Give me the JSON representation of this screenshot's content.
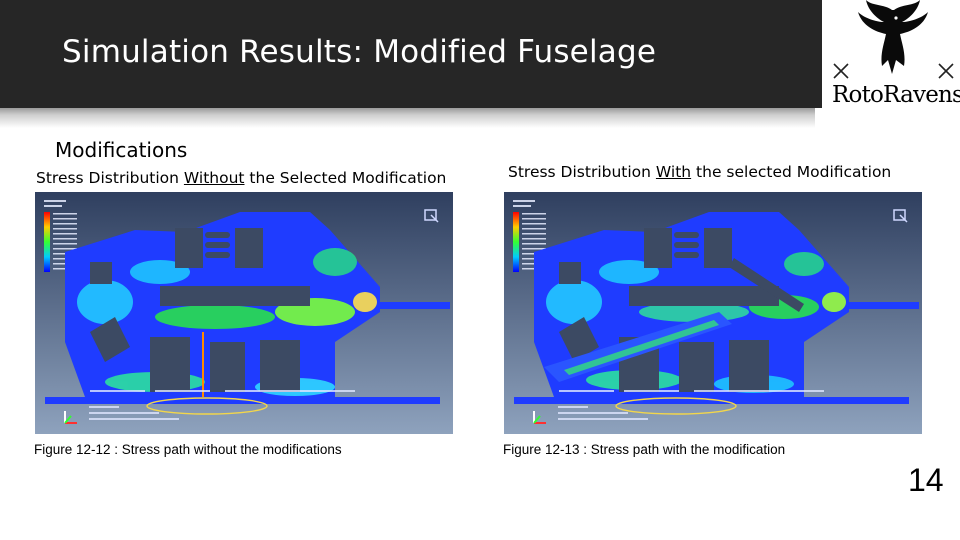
{
  "slide": {
    "title": "Simulation Results: Modified Fuselage",
    "logo_text": "RotoRavens",
    "page_number": "14"
  },
  "content": {
    "heading": "Modifications",
    "left": {
      "subheading_before": "Stress Distribution ",
      "subheading_emphasis": "Without",
      "subheading_after": " the Selected Modification",
      "caption": "Figure 12-12 : Stress path without the modifications"
    },
    "right": {
      "subheading_before": "Stress Distribution ",
      "subheading_emphasis": "With",
      "subheading_after": " the selected Modification",
      "caption": "Figure 12-13 : Stress path with the modification"
    }
  },
  "colors": {
    "title_bar": "#262626",
    "title_text": "#ffffff",
    "fea_background_top": "#2f3f5f",
    "fea_background_bottom": "#8ea2bd",
    "fea_structure": "#1f3cff",
    "highlight_ellipse": "#f2d64b"
  },
  "icons": {
    "logo": "raven-logo-icon",
    "view_cube": "view-triad-icon",
    "axis_triad": "axis-triad-icon"
  }
}
